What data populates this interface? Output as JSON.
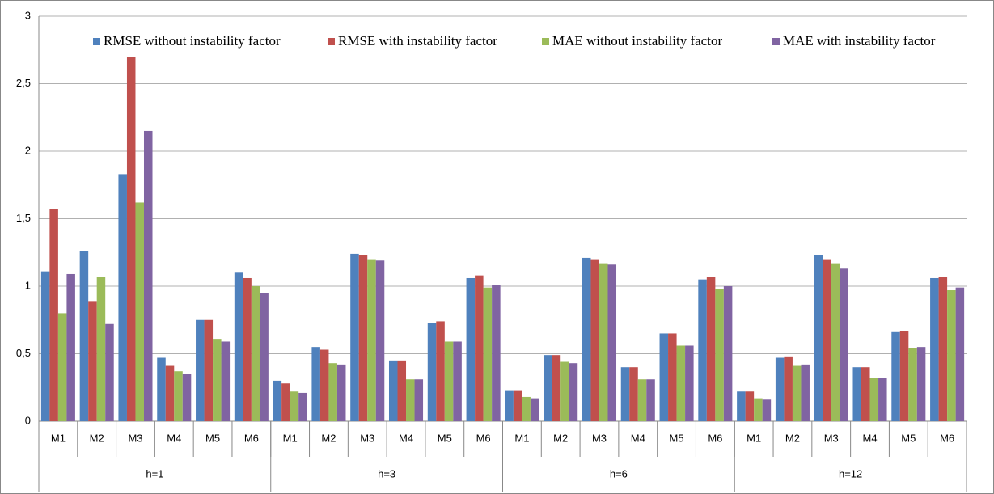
{
  "chart_data": {
    "type": "bar",
    "categories": [
      "M1",
      "M2",
      "M3",
      "M4",
      "M5",
      "M6",
      "M1",
      "M2",
      "M3",
      "M4",
      "M5",
      "M6",
      "M1",
      "M2",
      "M3",
      "M4",
      "M5",
      "M6",
      "M1",
      "M2",
      "M3",
      "M4",
      "M5",
      "M6"
    ],
    "groups": [
      "h=1",
      "h=3",
      "h=6",
      "h=12"
    ],
    "series": [
      {
        "name": "RMSE without instability factor",
        "color": "#4f81bd",
        "values": [
          1.11,
          1.26,
          1.83,
          0.47,
          0.75,
          1.1,
          0.3,
          0.55,
          1.24,
          0.45,
          0.73,
          1.06,
          0.23,
          0.49,
          1.21,
          0.4,
          0.65,
          1.05,
          0.22,
          0.47,
          1.23,
          0.4,
          0.66,
          1.06
        ]
      },
      {
        "name": "RMSE with instability factor",
        "color": "#c0504d",
        "values": [
          1.57,
          0.89,
          2.7,
          0.41,
          0.75,
          1.06,
          0.28,
          0.53,
          1.23,
          0.45,
          0.74,
          1.08,
          0.23,
          0.49,
          1.2,
          0.4,
          0.65,
          1.07,
          0.22,
          0.48,
          1.2,
          0.4,
          0.67,
          1.07
        ]
      },
      {
        "name": "MAE without instability factor",
        "color": "#9bbb59",
        "values": [
          0.8,
          1.07,
          1.62,
          0.37,
          0.61,
          1.0,
          0.22,
          0.43,
          1.2,
          0.31,
          0.59,
          0.99,
          0.18,
          0.44,
          1.17,
          0.31,
          0.56,
          0.98,
          0.17,
          0.41,
          1.17,
          0.32,
          0.54,
          0.97
        ]
      },
      {
        "name": "MAE with instability factor",
        "color": "#8064a2",
        "values": [
          1.09,
          0.72,
          2.15,
          0.35,
          0.59,
          0.95,
          0.21,
          0.42,
          1.19,
          0.31,
          0.59,
          1.01,
          0.17,
          0.43,
          1.16,
          0.31,
          0.56,
          1.0,
          0.16,
          0.42,
          1.13,
          0.32,
          0.55,
          0.99
        ]
      }
    ],
    "ylim": [
      0,
      3
    ],
    "yticks": [
      0,
      {
        "value": 0.5,
        "label": "0,5"
      },
      1,
      {
        "value": 1.5,
        "label": "1,5"
      },
      2,
      {
        "value": 2.5,
        "label": "2,5"
      },
      3
    ],
    "grid": true
  }
}
